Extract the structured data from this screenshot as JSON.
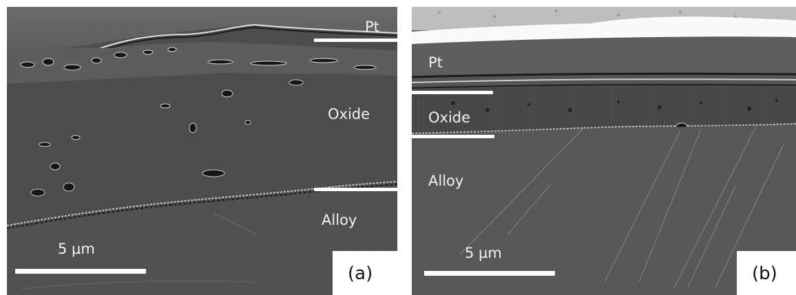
{
  "panels": [
    {
      "id": "a",
      "layer_labels": {
        "pt": "Pt",
        "oxide": "Oxide",
        "alloy": "Alloy"
      },
      "scale_label": "5 µm",
      "panel_label": "(a)"
    },
    {
      "id": "b",
      "layer_labels": {
        "pt": "Pt",
        "oxide": "Oxide",
        "alloy": "Alloy"
      },
      "scale_label": "5 µm",
      "panel_label": "(b)"
    }
  ],
  "colors": {
    "pt_coating": "#5a5a5a",
    "oxide": "#4a4a4a",
    "alloy": "#555555",
    "pores": "#111111",
    "annotation": "#ffffff"
  }
}
